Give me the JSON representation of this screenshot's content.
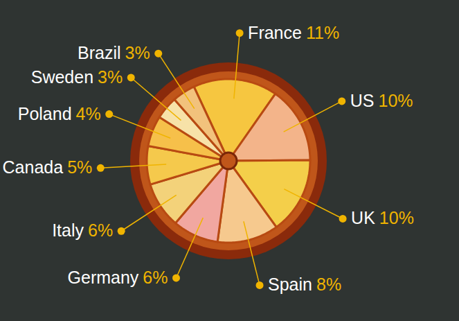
{
  "chart_data": {
    "type": "pie",
    "categories": [
      "France",
      "US",
      "UK",
      "Spain",
      "Germany",
      "Italy",
      "Canada",
      "Poland",
      "Sweden",
      "Brazil"
    ],
    "values": [
      11,
      10,
      10,
      8,
      6,
      6,
      5,
      4,
      3,
      3
    ],
    "value_labels": [
      "11%",
      "10%",
      "10%",
      "8%",
      "6%",
      "6%",
      "5%",
      "4%",
      "3%",
      "3%"
    ],
    "colors": [
      "#f6c640",
      "#f3b48a",
      "#f4cf4a",
      "#f6c98e",
      "#f1a7a0",
      "#f3d27a",
      "#f5c94c",
      "#f6c04a",
      "#f7e2a8",
      "#f2c27c"
    ],
    "data_labels": true
  }
}
